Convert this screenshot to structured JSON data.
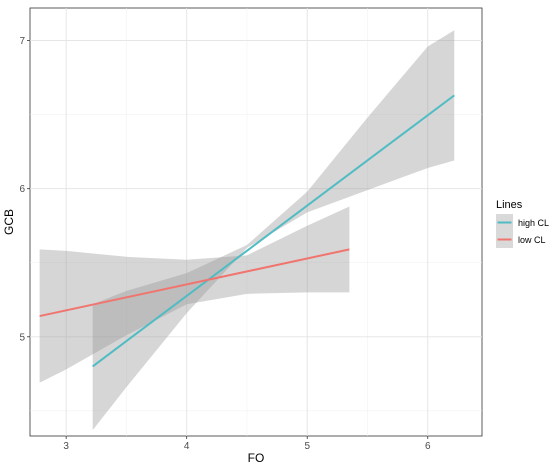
{
  "chart_data": {
    "type": "line",
    "xlabel": "FO",
    "ylabel": "GCB",
    "xlim": [
      2.7,
      6.45
    ],
    "ylim": [
      4.33,
      7.22
    ],
    "x_ticks": [
      "3",
      "4",
      "5",
      "6"
    ],
    "y_ticks": [
      "5",
      "6",
      "7"
    ],
    "grid": true,
    "legend": {
      "title": "Lines",
      "position": "right"
    },
    "series": [
      {
        "name": "high CL",
        "color": "#4fbcc4",
        "x": [
          3.22,
          6.22
        ],
        "y": [
          4.8,
          6.63
        ],
        "ribbon": {
          "x": [
            3.22,
            3.5,
            4.0,
            4.5,
            5.0,
            5.5,
            6.0,
            6.22
          ],
          "lower": [
            4.37,
            4.66,
            5.16,
            5.6,
            5.84,
            5.99,
            6.14,
            6.19
          ],
          "upper": [
            5.22,
            5.31,
            5.43,
            5.62,
            5.98,
            6.48,
            6.96,
            7.07
          ]
        }
      },
      {
        "name": "low CL",
        "color": "#f0756f",
        "x": [
          2.78,
          5.35
        ],
        "y": [
          5.14,
          5.59
        ],
        "ribbon": {
          "x": [
            2.78,
            3.0,
            3.5,
            4.0,
            4.5,
            5.0,
            5.35
          ],
          "lower": [
            4.69,
            4.78,
            5.01,
            5.22,
            5.29,
            5.3,
            5.3
          ],
          "upper": [
            5.59,
            5.58,
            5.54,
            5.52,
            5.55,
            5.75,
            5.88
          ]
        }
      }
    ]
  }
}
